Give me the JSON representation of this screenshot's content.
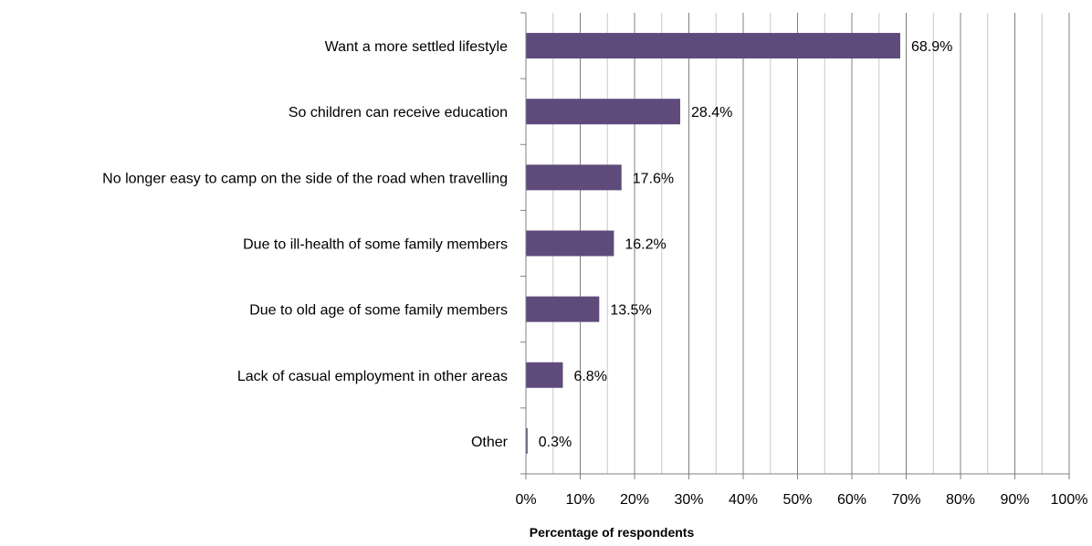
{
  "chart_data": {
    "type": "bar",
    "orientation": "horizontal",
    "title": "",
    "xlabel": "Percentage of respondents",
    "ylabel": "",
    "categories": [
      "Want a more settled lifestyle",
      "So children can receive education",
      "No longer easy to camp on the side of the road when travelling",
      "Due to ill-health of some family members",
      "Due to old age of some family members",
      "Lack of casual employment in other areas",
      "Other"
    ],
    "values": [
      68.9,
      28.4,
      17.6,
      16.2,
      13.5,
      6.8,
      0.3
    ],
    "value_labels": [
      "68.9%",
      "28.4%",
      "17.6%",
      "16.2%",
      "13.5%",
      "6.8%",
      "0.3%"
    ],
    "xlim": [
      0,
      100
    ],
    "xticks": [
      0,
      10,
      20,
      30,
      40,
      50,
      60,
      70,
      80,
      90,
      100
    ],
    "xtick_labels": [
      "0%",
      "10%",
      "20%",
      "30%",
      "40%",
      "50%",
      "60%",
      "70%",
      "80%",
      "90%",
      "100%"
    ],
    "grid": "vertical",
    "legend": "none",
    "colors": {
      "bar": "#5f4a7c",
      "major_grid": "#808080",
      "minor_grid": "#c8c8c8",
      "axis": "#808080"
    }
  }
}
